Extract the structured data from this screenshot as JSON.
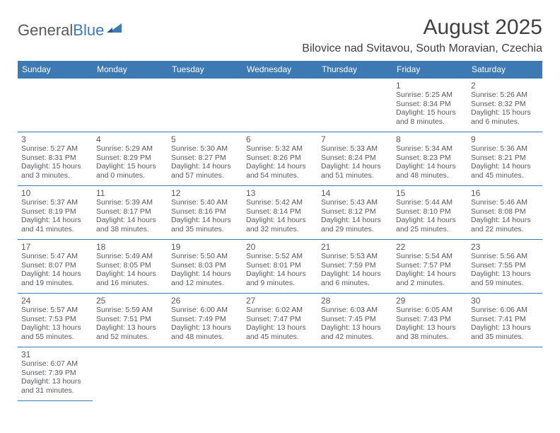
{
  "logo": {
    "text1": "General",
    "text2": "Blue"
  },
  "title": "August 2025",
  "subtitle": "Bilovice nad Svitavou, South Moravian, Czechia",
  "headers": [
    "Sunday",
    "Monday",
    "Tuesday",
    "Wednesday",
    "Thursday",
    "Friday",
    "Saturday"
  ],
  "colors": {
    "accent": "#3d79b3",
    "text": "#58595b",
    "title": "#404040",
    "bg": "#ffffff"
  },
  "weeks": [
    [
      null,
      null,
      null,
      null,
      null,
      {
        "n": "1",
        "sr": "Sunrise: 5:25 AM",
        "ss": "Sunset: 8:34 PM",
        "dl": "Daylight: 15 hours and 8 minutes."
      },
      {
        "n": "2",
        "sr": "Sunrise: 5:26 AM",
        "ss": "Sunset: 8:32 PM",
        "dl": "Daylight: 15 hours and 6 minutes."
      }
    ],
    [
      {
        "n": "3",
        "sr": "Sunrise: 5:27 AM",
        "ss": "Sunset: 8:31 PM",
        "dl": "Daylight: 15 hours and 3 minutes."
      },
      {
        "n": "4",
        "sr": "Sunrise: 5:29 AM",
        "ss": "Sunset: 8:29 PM",
        "dl": "Daylight: 15 hours and 0 minutes."
      },
      {
        "n": "5",
        "sr": "Sunrise: 5:30 AM",
        "ss": "Sunset: 8:27 PM",
        "dl": "Daylight: 14 hours and 57 minutes."
      },
      {
        "n": "6",
        "sr": "Sunrise: 5:32 AM",
        "ss": "Sunset: 8:26 PM",
        "dl": "Daylight: 14 hours and 54 minutes."
      },
      {
        "n": "7",
        "sr": "Sunrise: 5:33 AM",
        "ss": "Sunset: 8:24 PM",
        "dl": "Daylight: 14 hours and 51 minutes."
      },
      {
        "n": "8",
        "sr": "Sunrise: 5:34 AM",
        "ss": "Sunset: 8:23 PM",
        "dl": "Daylight: 14 hours and 48 minutes."
      },
      {
        "n": "9",
        "sr": "Sunrise: 5:36 AM",
        "ss": "Sunset: 8:21 PM",
        "dl": "Daylight: 14 hours and 45 minutes."
      }
    ],
    [
      {
        "n": "10",
        "sr": "Sunrise: 5:37 AM",
        "ss": "Sunset: 8:19 PM",
        "dl": "Daylight: 14 hours and 41 minutes."
      },
      {
        "n": "11",
        "sr": "Sunrise: 5:39 AM",
        "ss": "Sunset: 8:17 PM",
        "dl": "Daylight: 14 hours and 38 minutes."
      },
      {
        "n": "12",
        "sr": "Sunrise: 5:40 AM",
        "ss": "Sunset: 8:16 PM",
        "dl": "Daylight: 14 hours and 35 minutes."
      },
      {
        "n": "13",
        "sr": "Sunrise: 5:42 AM",
        "ss": "Sunset: 8:14 PM",
        "dl": "Daylight: 14 hours and 32 minutes."
      },
      {
        "n": "14",
        "sr": "Sunrise: 5:43 AM",
        "ss": "Sunset: 8:12 PM",
        "dl": "Daylight: 14 hours and 29 minutes."
      },
      {
        "n": "15",
        "sr": "Sunrise: 5:44 AM",
        "ss": "Sunset: 8:10 PM",
        "dl": "Daylight: 14 hours and 25 minutes."
      },
      {
        "n": "16",
        "sr": "Sunrise: 5:46 AM",
        "ss": "Sunset: 8:08 PM",
        "dl": "Daylight: 14 hours and 22 minutes."
      }
    ],
    [
      {
        "n": "17",
        "sr": "Sunrise: 5:47 AM",
        "ss": "Sunset: 8:07 PM",
        "dl": "Daylight: 14 hours and 19 minutes."
      },
      {
        "n": "18",
        "sr": "Sunrise: 5:49 AM",
        "ss": "Sunset: 8:05 PM",
        "dl": "Daylight: 14 hours and 16 minutes."
      },
      {
        "n": "19",
        "sr": "Sunrise: 5:50 AM",
        "ss": "Sunset: 8:03 PM",
        "dl": "Daylight: 14 hours and 12 minutes."
      },
      {
        "n": "20",
        "sr": "Sunrise: 5:52 AM",
        "ss": "Sunset: 8:01 PM",
        "dl": "Daylight: 14 hours and 9 minutes."
      },
      {
        "n": "21",
        "sr": "Sunrise: 5:53 AM",
        "ss": "Sunset: 7:59 PM",
        "dl": "Daylight: 14 hours and 6 minutes."
      },
      {
        "n": "22",
        "sr": "Sunrise: 5:54 AM",
        "ss": "Sunset: 7:57 PM",
        "dl": "Daylight: 14 hours and 2 minutes."
      },
      {
        "n": "23",
        "sr": "Sunrise: 5:56 AM",
        "ss": "Sunset: 7:55 PM",
        "dl": "Daylight: 13 hours and 59 minutes."
      }
    ],
    [
      {
        "n": "24",
        "sr": "Sunrise: 5:57 AM",
        "ss": "Sunset: 7:53 PM",
        "dl": "Daylight: 13 hours and 55 minutes."
      },
      {
        "n": "25",
        "sr": "Sunrise: 5:59 AM",
        "ss": "Sunset: 7:51 PM",
        "dl": "Daylight: 13 hours and 52 minutes."
      },
      {
        "n": "26",
        "sr": "Sunrise: 6:00 AM",
        "ss": "Sunset: 7:49 PM",
        "dl": "Daylight: 13 hours and 48 minutes."
      },
      {
        "n": "27",
        "sr": "Sunrise: 6:02 AM",
        "ss": "Sunset: 7:47 PM",
        "dl": "Daylight: 13 hours and 45 minutes."
      },
      {
        "n": "28",
        "sr": "Sunrise: 6:03 AM",
        "ss": "Sunset: 7:45 PM",
        "dl": "Daylight: 13 hours and 42 minutes."
      },
      {
        "n": "29",
        "sr": "Sunrise: 6:05 AM",
        "ss": "Sunset: 7:43 PM",
        "dl": "Daylight: 13 hours and 38 minutes."
      },
      {
        "n": "30",
        "sr": "Sunrise: 6:06 AM",
        "ss": "Sunset: 7:41 PM",
        "dl": "Daylight: 13 hours and 35 minutes."
      }
    ],
    [
      {
        "n": "31",
        "sr": "Sunrise: 6:07 AM",
        "ss": "Sunset: 7:39 PM",
        "dl": "Daylight: 13 hours and 31 minutes."
      },
      null,
      null,
      null,
      null,
      null,
      null
    ]
  ]
}
